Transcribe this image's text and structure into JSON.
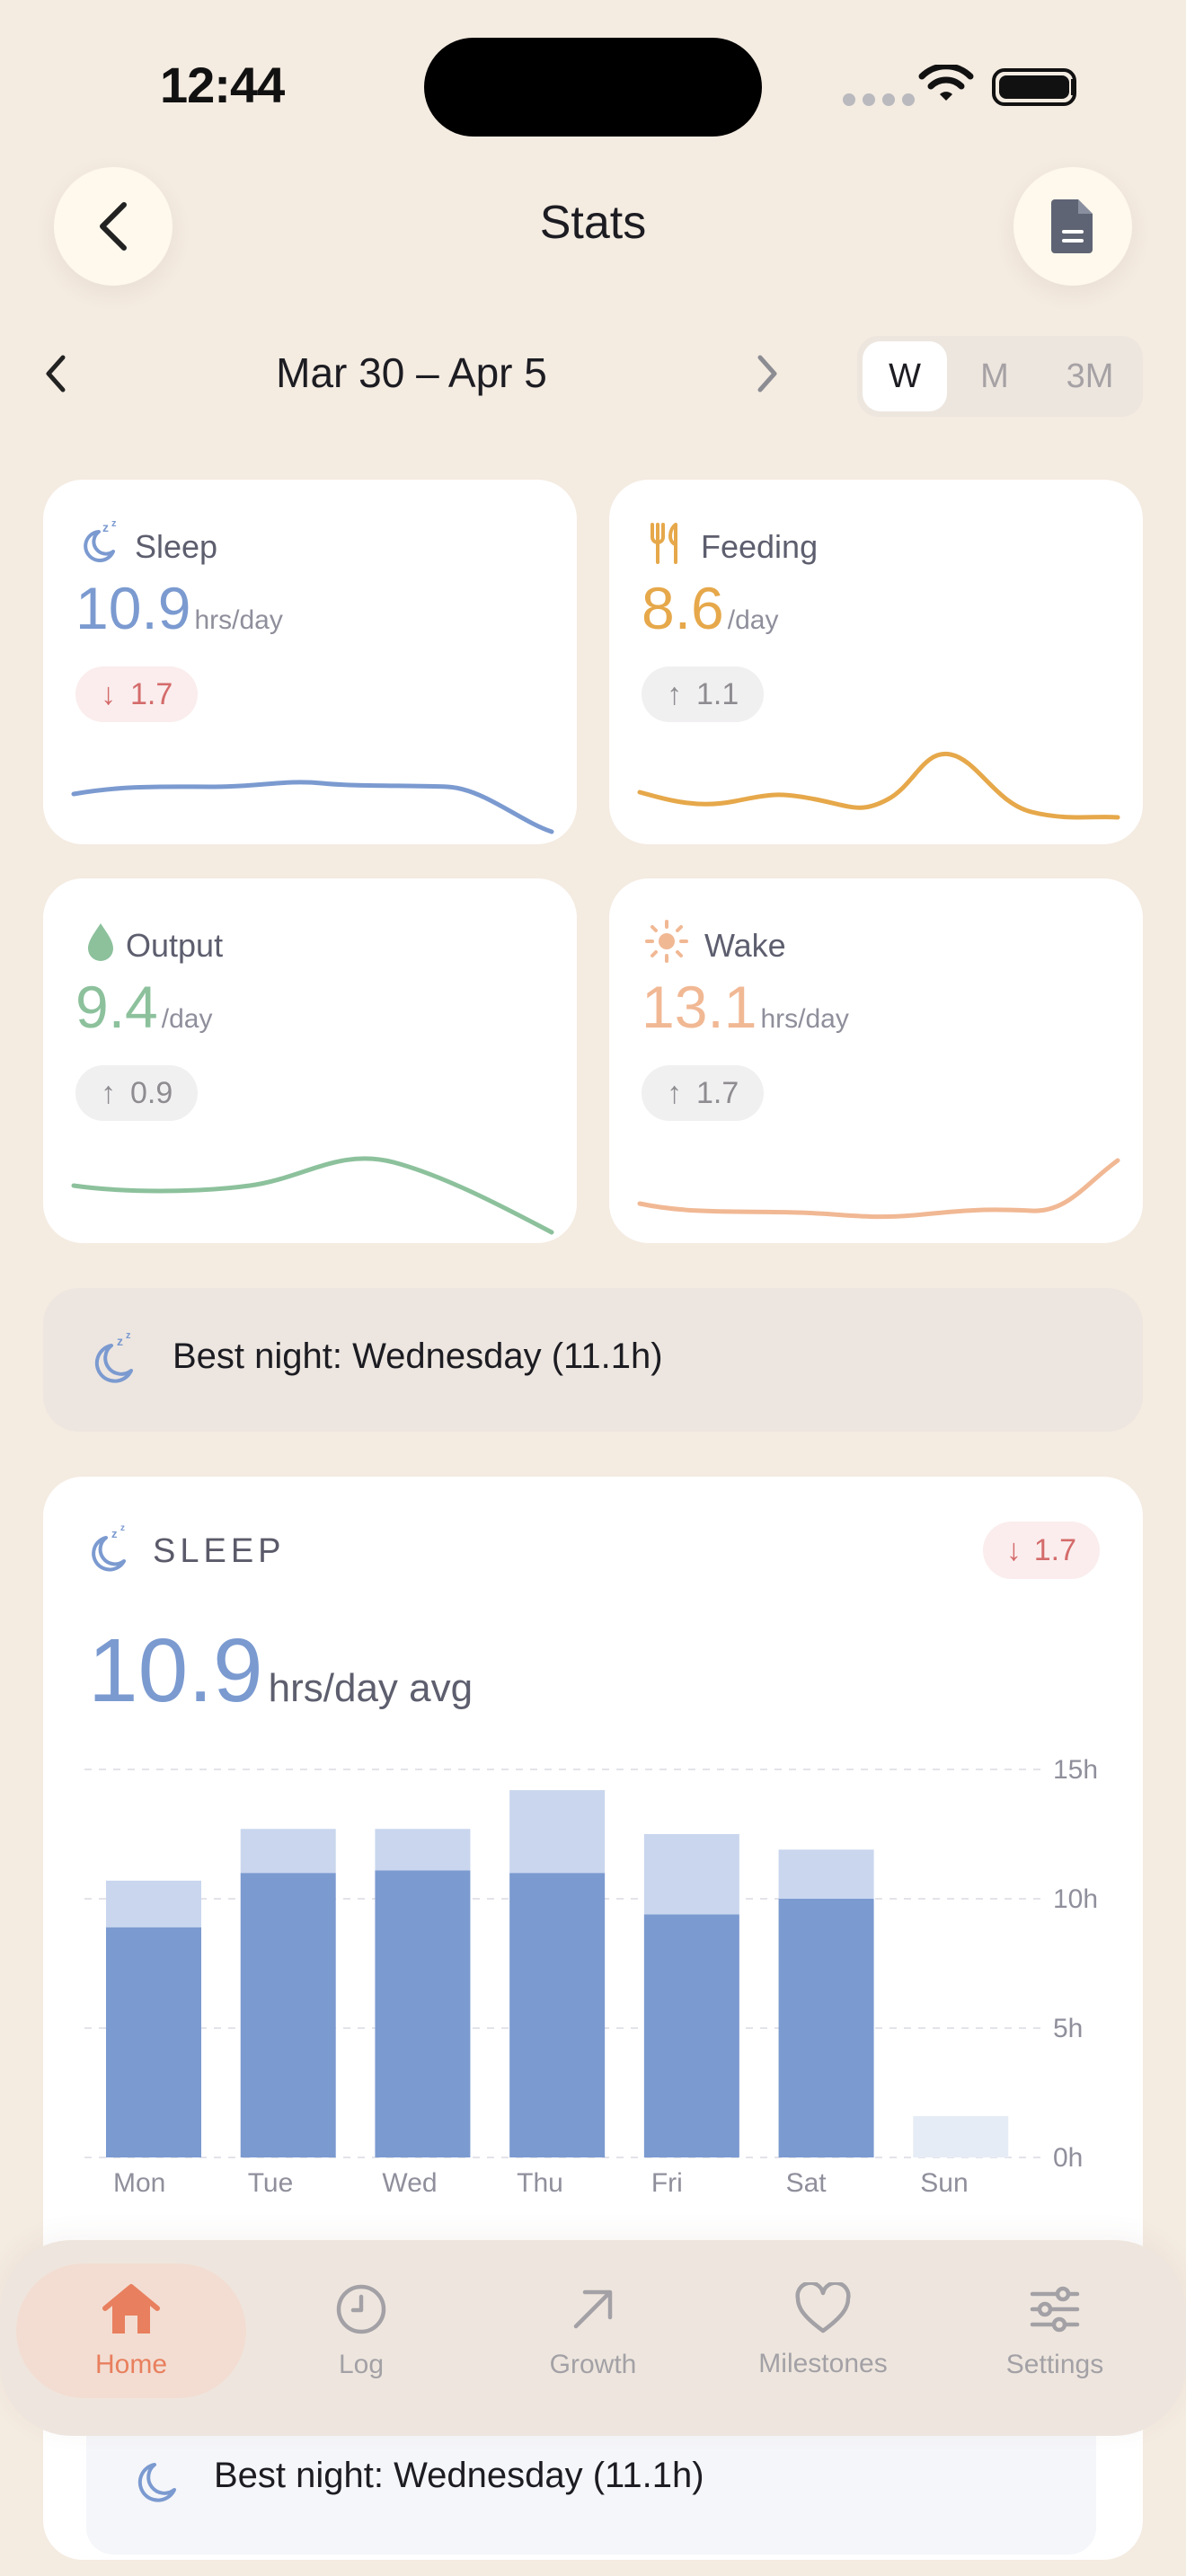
{
  "status_bar": {
    "time": "12:44"
  },
  "header": {
    "title": "Stats"
  },
  "date_nav": {
    "range": "Mar 30 – Apr 5",
    "periods": [
      "W",
      "M",
      "3M"
    ],
    "selected_period": "W"
  },
  "stat_cards": [
    {
      "label": "Sleep",
      "value": "10.9",
      "unit": "hrs/day",
      "delta": "1.7",
      "delta_dir": "down",
      "color": "#7B9AD0",
      "icon": "sleep-moon-icon"
    },
    {
      "label": "Feeding",
      "value": "8.6",
      "unit": "/day",
      "delta": "1.1",
      "delta_dir": "up",
      "color": "#E6A84A",
      "icon": "utensils-icon"
    },
    {
      "label": "Output",
      "value": "9.4",
      "unit": "/day",
      "delta": "0.9",
      "delta_dir": "up",
      "color": "#8CC19C",
      "icon": "droplet-icon"
    },
    {
      "label": "Wake",
      "value": "13.1",
      "unit": "hrs/day",
      "delta": "1.7",
      "delta_dir": "up",
      "color": "#F1B894",
      "icon": "sun-icon"
    }
  ],
  "best_night": {
    "text": "Best night: Wednesday (11.1h)"
  },
  "sleep_card": {
    "title": "SLEEP",
    "delta": "1.7",
    "value": "10.9",
    "unit": "hrs/day avg",
    "best_text": "Best night: Wednesday (11.1h)"
  },
  "chart_data": {
    "type": "bar",
    "stacked": true,
    "categories": [
      "Mon",
      "Tue",
      "Wed",
      "Thu",
      "Fri",
      "Sat",
      "Sun"
    ],
    "series": [
      {
        "values": [
          8.9,
          11.0,
          11.1,
          11.0,
          9.4,
          10.0,
          0
        ],
        "color": "#7B9AD0"
      },
      {
        "values": [
          1.8,
          1.7,
          1.6,
          3.2,
          3.1,
          1.9,
          1.6
        ],
        "color": "#C9D6EE"
      }
    ],
    "y_ticks": [
      "0h",
      "5h",
      "10h",
      "15h"
    ],
    "ylim": [
      0,
      15
    ],
    "grid": true
  },
  "tabs": [
    {
      "label": "Home",
      "icon": "home-icon",
      "active": true
    },
    {
      "label": "Log",
      "icon": "clock-icon",
      "active": false
    },
    {
      "label": "Growth",
      "icon": "arrow-up-right-icon",
      "active": false
    },
    {
      "label": "Milestones",
      "icon": "heart-icon",
      "active": false
    },
    {
      "label": "Settings",
      "icon": "sliders-icon",
      "active": false
    }
  ]
}
